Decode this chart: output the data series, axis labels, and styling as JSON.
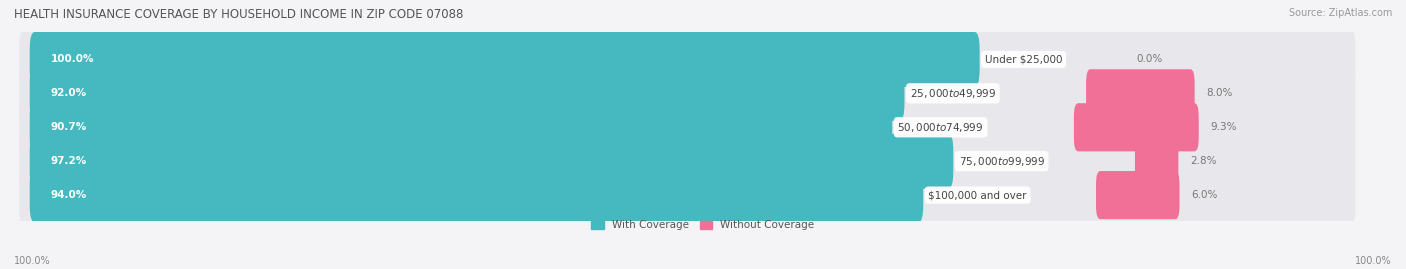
{
  "title": "HEALTH INSURANCE COVERAGE BY HOUSEHOLD INCOME IN ZIP CODE 07088",
  "source": "Source: ZipAtlas.com",
  "categories": [
    "Under $25,000",
    "$25,000 to $49,999",
    "$50,000 to $74,999",
    "$75,000 to $99,999",
    "$100,000 and over"
  ],
  "with_coverage": [
    100.0,
    92.0,
    90.7,
    97.2,
    94.0
  ],
  "without_coverage": [
    0.0,
    8.0,
    9.3,
    2.8,
    6.0
  ],
  "color_with": "#45B8C0",
  "color_without": "#F07098",
  "row_bg": "#E8E8EC",
  "fig_bg": "#F4F4F6",
  "title_fontsize": 8.5,
  "label_fontsize": 7.5,
  "pct_fontsize": 7.5,
  "tick_fontsize": 7,
  "legend_fontsize": 7.5,
  "x_left_label": "100.0%",
  "x_right_label": "100.0%",
  "total_width": 100.0,
  "max_pink_pct": 15.0
}
